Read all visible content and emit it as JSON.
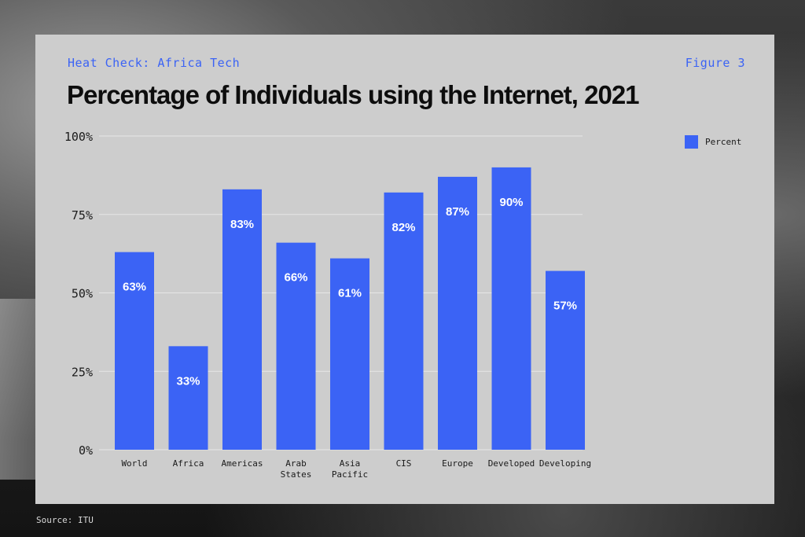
{
  "header": {
    "kicker": "Heat Check: Africa Tech",
    "figure_label": "Figure 3",
    "title": "Percentage of Individuals using the Internet, 2021"
  },
  "footer": {
    "source": "Source: ITU"
  },
  "colors": {
    "bar": "#3b63f5",
    "grid": "#e6e6e6",
    "label": "#ffffff"
  },
  "chart_data": {
    "type": "bar",
    "title": "Percentage of Individuals using the Internet, 2021",
    "categories": [
      "World",
      "Africa",
      "Americas",
      "Arab States",
      "Asia Pacific",
      "CIS",
      "Europe",
      "Developed",
      "Developing"
    ],
    "series": [
      {
        "name": "Percent",
        "values": [
          63,
          33,
          83,
          66,
          61,
          82,
          87,
          90,
          57
        ]
      }
    ],
    "data_labels": [
      "63%",
      "33%",
      "83%",
      "66%",
      "61%",
      "82%",
      "87%",
      "90%",
      "57%"
    ],
    "y_ticks": [
      0,
      25,
      50,
      75,
      100
    ],
    "y_tick_labels": [
      "0%",
      "25%",
      "50%",
      "75%",
      "100%"
    ],
    "ylim": [
      0,
      100
    ],
    "xlabel": "",
    "ylabel": "",
    "grid": true,
    "legend": {
      "position": "top-right",
      "label": "Percent"
    }
  }
}
